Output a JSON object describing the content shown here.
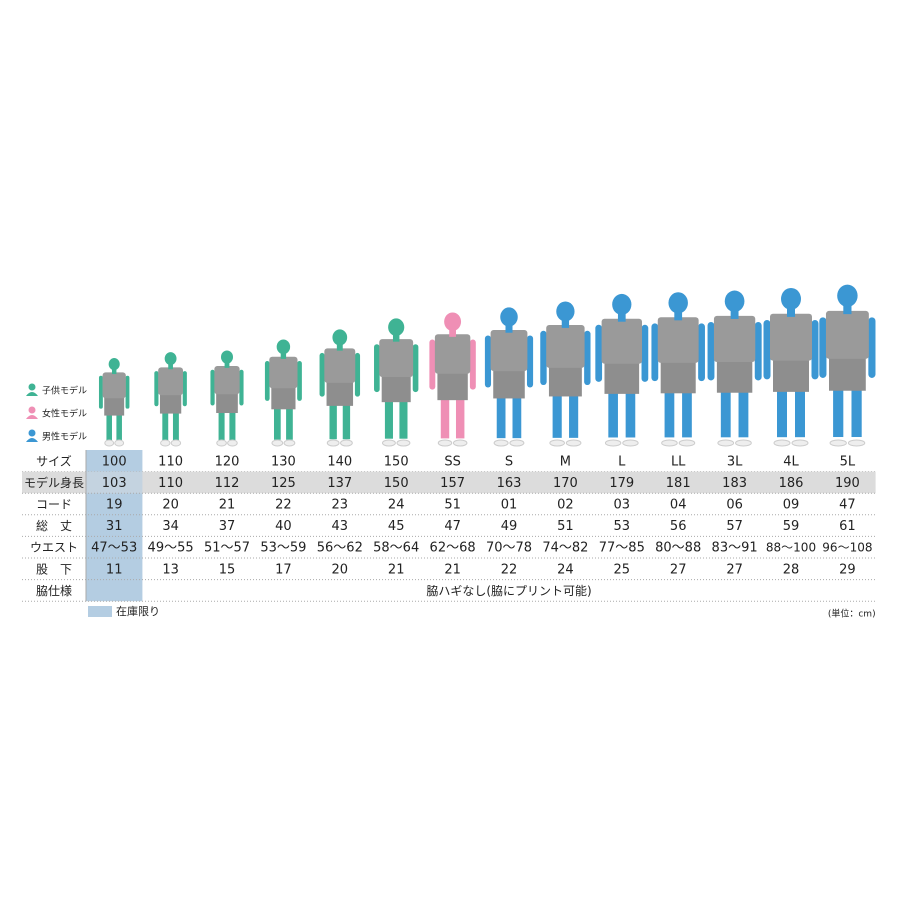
{
  "legend": [
    {
      "label": "子供モデル",
      "color": "#3fb394"
    },
    {
      "label": "女性モデル",
      "color": "#ef8fb5"
    },
    {
      "label": "男性モデル",
      "color": "#3b97d3"
    }
  ],
  "table": {
    "column_colors": [
      "#3fb394",
      "#3fb394",
      "#3fb394",
      "#3fb394",
      "#3fb394",
      "#3fb394",
      "#ef8fb5",
      "#3b97d3",
      "#3b97d3",
      "#3b97d3",
      "#3b97d3",
      "#3b97d3",
      "#3b97d3",
      "#3b97d3"
    ],
    "text_colors": [
      "#2aa586",
      "#2aa586",
      "#2aa586",
      "#2aa586",
      "#2aa586",
      "#2aa586",
      "#2b8cc4",
      "#2b8cc4",
      "#2b8cc4",
      "#2b8cc4",
      "#2b8cc4",
      "#2b8cc4",
      "#2b8cc4",
      "#2b8cc4"
    ],
    "rows": [
      {
        "label": "サイズ",
        "colored": true,
        "cells": [
          "100",
          "110",
          "120",
          "130",
          "140",
          "150",
          "SS",
          "S",
          "M",
          "L",
          "LL",
          "3L",
          "4L",
          "5L"
        ]
      },
      {
        "label": "モデル身長",
        "colored": false,
        "shaded": true,
        "cells": [
          "103",
          "110",
          "112",
          "125",
          "137",
          "150",
          "157",
          "163",
          "170",
          "179",
          "181",
          "183",
          "186",
          "190"
        ]
      },
      {
        "label": "コード",
        "colored": true,
        "cells": [
          "19",
          "20",
          "21",
          "22",
          "23",
          "24",
          "51",
          "01",
          "02",
          "03",
          "04",
          "06",
          "09",
          "47"
        ]
      },
      {
        "label": "総　丈",
        "colored": false,
        "cells": [
          "31",
          "34",
          "37",
          "40",
          "43",
          "45",
          "47",
          "49",
          "51",
          "53",
          "56",
          "57",
          "59",
          "61"
        ]
      },
      {
        "label": "ウエスト",
        "colored": false,
        "cells": [
          "47〜53",
          "49〜55",
          "51〜57",
          "53〜59",
          "56〜62",
          "58〜64",
          "62〜68",
          "70〜78",
          "74〜82",
          "77〜85",
          "80〜88",
          "83〜91",
          "88〜100",
          "96〜108"
        ]
      },
      {
        "label": "股　下",
        "colored": false,
        "cells": [
          "11",
          "13",
          "15",
          "17",
          "20",
          "21",
          "21",
          "22",
          "24",
          "25",
          "27",
          "27",
          "28",
          "29"
        ]
      }
    ],
    "side_spec": {
      "label": "脇仕様",
      "text": "脇ハギなし(脇にプリント可能)"
    },
    "stock_note": {
      "label": "在庫限り",
      "color": "#b4cde2"
    },
    "unit_note": "(単位：cm)"
  }
}
